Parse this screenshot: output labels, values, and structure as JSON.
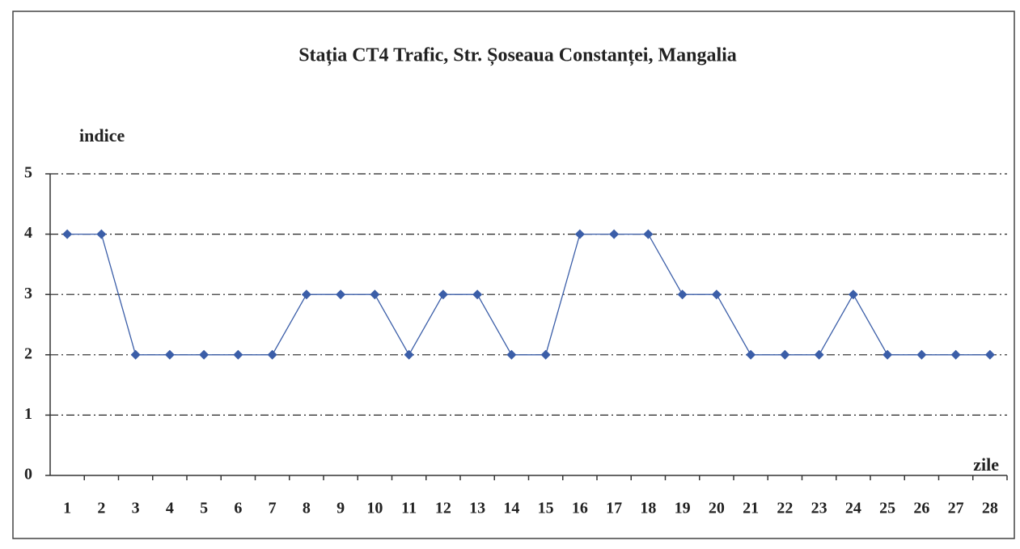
{
  "chart_data": {
    "type": "line",
    "title": "Stația CT4 Trafic, Str. Șoseaua Constanței, Mangalia",
    "y_label": "indice",
    "x_label": "zile",
    "categories": [
      1,
      2,
      3,
      4,
      5,
      6,
      7,
      8,
      9,
      10,
      11,
      12,
      13,
      14,
      15,
      16,
      17,
      18,
      19,
      20,
      21,
      22,
      23,
      24,
      25,
      26,
      27,
      28
    ],
    "series": [
      {
        "color": "#3b5ea8",
        "values": [
          4,
          4,
          2,
          2,
          2,
          2,
          2,
          3,
          3,
          3,
          2,
          3,
          3,
          2,
          2,
          4,
          4,
          4,
          3,
          3,
          2,
          2,
          2,
          3,
          2,
          2,
          2,
          2
        ]
      }
    ],
    "ylim": [
      0,
      5
    ],
    "yticks": [
      0,
      1,
      2,
      3,
      4,
      5
    ],
    "grid": true
  }
}
